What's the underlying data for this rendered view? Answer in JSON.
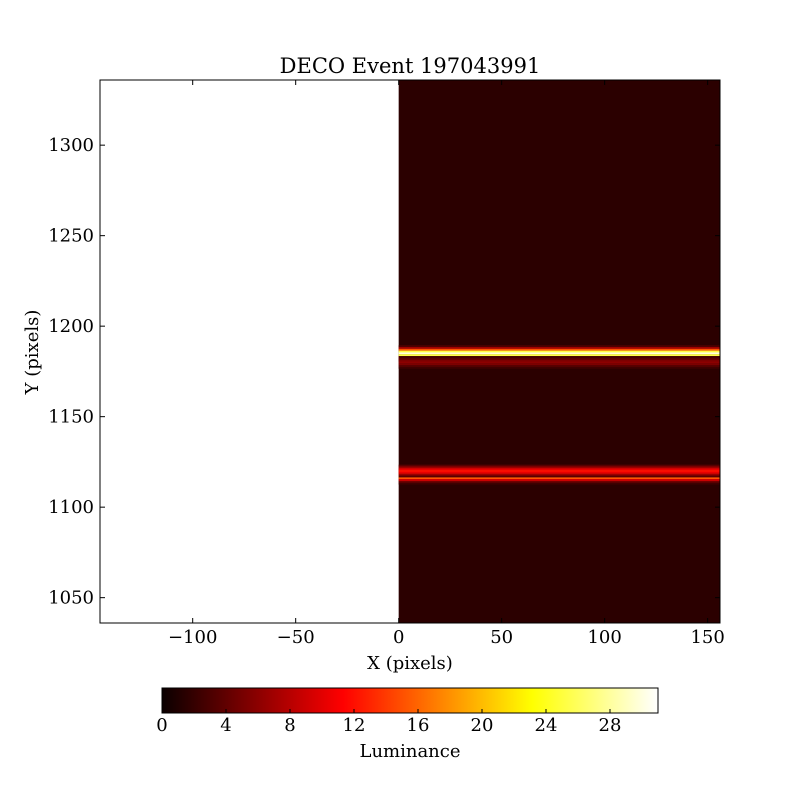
{
  "chart_data": {
    "type": "heatmap",
    "title": "DECO Event 197043991",
    "xlabel": "X (pixels)",
    "ylabel": "Y (pixels)",
    "xlim": [
      -145,
      156
    ],
    "ylim": [
      1036,
      1336
    ],
    "x_ticks": [
      -100,
      -50,
      0,
      50,
      100,
      150
    ],
    "x_tick_labels": [
      "−100",
      "−50",
      "0",
      "50",
      "100",
      "150"
    ],
    "y_ticks": [
      1050,
      1100,
      1150,
      1200,
      1250,
      1300
    ],
    "y_tick_labels": [
      "1050",
      "1100",
      "1150",
      "1200",
      "1250",
      "1300"
    ],
    "image_extent": {
      "x": [
        0,
        156
      ],
      "y": [
        1036,
        1336
      ]
    },
    "background_value": 1.5,
    "bands": [
      {
        "y": 1185,
        "peak": 30,
        "x_range": [
          0,
          156
        ]
      },
      {
        "y": 1180,
        "peak": 6,
        "x_range": [
          0,
          156
        ]
      },
      {
        "y": 1117,
        "peak": 18,
        "x_range": [
          0,
          156
        ]
      },
      {
        "y": 1120,
        "peak": 12,
        "x_range": [
          0,
          156
        ]
      }
    ],
    "colorbar": {
      "label": "Luminance",
      "colormap": "hot",
      "range": [
        0,
        31
      ],
      "ticks": [
        0,
        4,
        8,
        12,
        16,
        20,
        24,
        28
      ],
      "tick_labels": [
        "0",
        "4",
        "8",
        "12",
        "16",
        "20",
        "24",
        "28"
      ]
    },
    "grid": false
  }
}
